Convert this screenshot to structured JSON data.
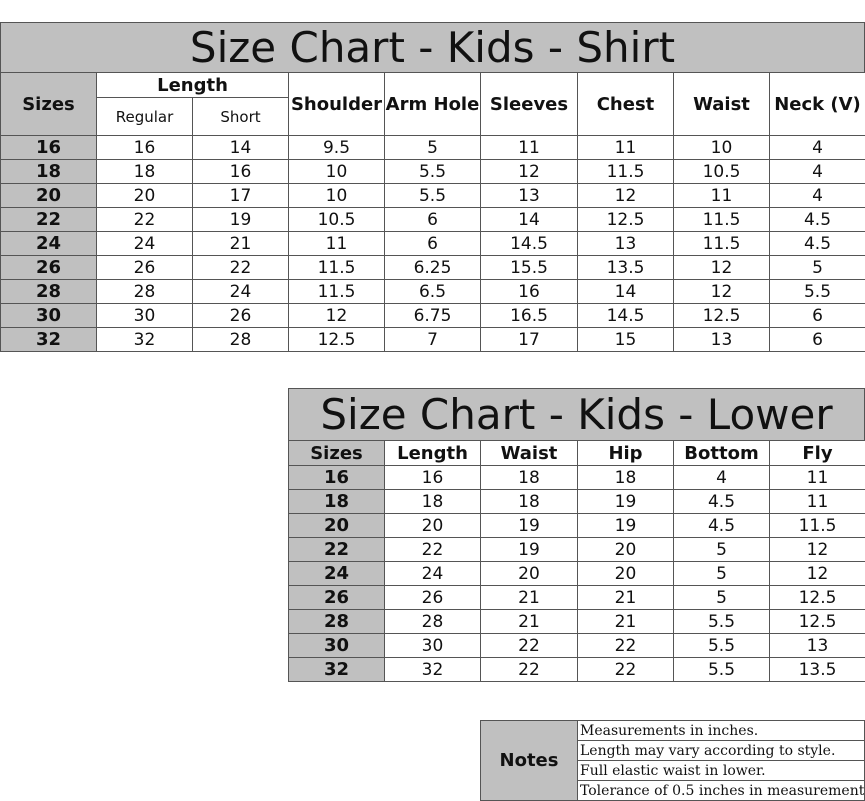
{
  "shirt": {
    "title": "Size Chart - Kids - Shirt",
    "header": {
      "sizes": "Sizes",
      "length": "Length",
      "sub": [
        "Regular",
        "Short"
      ],
      "columns": [
        "Shoulder",
        "Arm Hole",
        "Sleeves",
        "Chest",
        "Waist",
        "Neck (V)"
      ]
    },
    "rows": [
      [
        16,
        16,
        14,
        9.5,
        5,
        11,
        11,
        10,
        4
      ],
      [
        18,
        18,
        16,
        10,
        5.5,
        12,
        11.5,
        10.5,
        4
      ],
      [
        20,
        20,
        17,
        10,
        5.5,
        13,
        12,
        11,
        4
      ],
      [
        22,
        22,
        19,
        10.5,
        6,
        14,
        12.5,
        11.5,
        4.5
      ],
      [
        24,
        24,
        21,
        11,
        6,
        14.5,
        13,
        11.5,
        4.5
      ],
      [
        26,
        26,
        22,
        11.5,
        6.25,
        15.5,
        13.5,
        12,
        5
      ],
      [
        28,
        28,
        24,
        11.5,
        6.5,
        16,
        14,
        12,
        5.5
      ],
      [
        30,
        30,
        26,
        12,
        6.75,
        16.5,
        14.5,
        12.5,
        6
      ],
      [
        32,
        32,
        28,
        12.5,
        7,
        17,
        15,
        13,
        6
      ]
    ]
  },
  "lower": {
    "title": "Size Chart - Kids - Lower",
    "header": [
      "Sizes",
      "Length",
      "Waist",
      "Hip",
      "Bottom",
      "Fly"
    ],
    "rows": [
      [
        16,
        16,
        18,
        18,
        4,
        11
      ],
      [
        18,
        18,
        18,
        19,
        4.5,
        11
      ],
      [
        20,
        20,
        19,
        19,
        4.5,
        11.5
      ],
      [
        22,
        22,
        19,
        20,
        5,
        12
      ],
      [
        24,
        24,
        20,
        20,
        5,
        12
      ],
      [
        26,
        26,
        21,
        21,
        5,
        12.5
      ],
      [
        28,
        28,
        21,
        21,
        5.5,
        12.5
      ],
      [
        30,
        30,
        22,
        22,
        5.5,
        13
      ],
      [
        32,
        32,
        22,
        22,
        5.5,
        13.5
      ]
    ]
  },
  "notes": {
    "label": "Notes",
    "lines": [
      "Measurements in inches.",
      "Length may vary according to style.",
      "Full elastic waist in lower.",
      "Tolerance of 0.5 inches in measurement"
    ]
  }
}
